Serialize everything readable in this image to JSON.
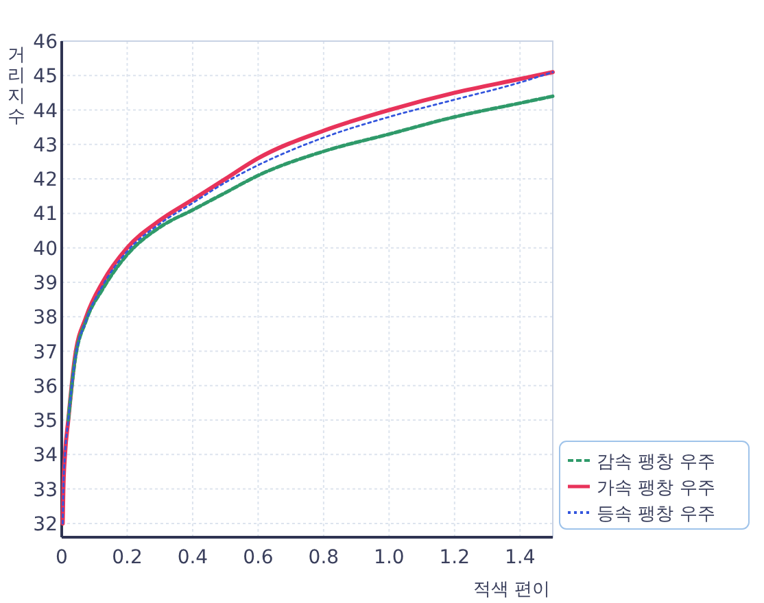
{
  "chart_data": {
    "type": "line",
    "xlabel": "적색 편이",
    "ylabel": "거리 지수",
    "x": [
      0.003,
      0.005,
      0.01,
      0.02,
      0.04,
      0.075,
      0.125,
      0.2,
      0.3,
      0.4,
      0.5,
      0.6,
      0.8,
      1.0,
      1.2,
      1.4,
      1.5
    ],
    "series": [
      {
        "name": "감속 팽창 우주",
        "color": "#2f9a6a",
        "line_style": "dashed",
        "values": [
          null,
          null,
          null,
          35.0,
          36.7,
          37.9,
          38.8,
          39.8,
          40.6,
          41.1,
          41.6,
          42.1,
          42.8,
          43.3,
          43.8,
          44.2,
          44.4
        ]
      },
      {
        "name": "가속 팽창 우주",
        "color": "#e8335a",
        "line_style": "solid",
        "values": [
          32.0,
          33.0,
          34.0,
          35.0,
          36.8,
          38.0,
          39.0,
          40.0,
          40.8,
          41.4,
          42.0,
          42.6,
          43.4,
          44.0,
          44.5,
          44.9,
          45.1
        ]
      },
      {
        "name": "등속 팽창 우주",
        "color": "#3355dd",
        "line_style": "dotted",
        "values": [
          32.0,
          33.0,
          34.0,
          35.0,
          36.7,
          37.9,
          38.9,
          39.9,
          40.7,
          41.3,
          41.9,
          42.4,
          43.2,
          43.8,
          44.3,
          44.8,
          45.1
        ]
      }
    ],
    "xlim": [
      0,
      1.5
    ],
    "xticks": [
      0,
      {
        "value": 0.2,
        "label": "0.2"
      },
      {
        "value": 0.4,
        "label": "0.4"
      },
      {
        "value": 0.6,
        "label": "0.6"
      },
      {
        "value": 0.8,
        "label": "0.8"
      },
      {
        "value": 1.0,
        "label": "1.0"
      },
      {
        "value": 1.2,
        "label": "1.2"
      },
      {
        "value": 1.4,
        "label": "1.4"
      }
    ],
    "ylim": [
      31.6,
      46
    ],
    "yticks": [
      32,
      33,
      34,
      35,
      36,
      37,
      38,
      39,
      40,
      41,
      42,
      43,
      44,
      45,
      46
    ],
    "grid": true,
    "legend": "bottom right",
    "marker": "none"
  }
}
